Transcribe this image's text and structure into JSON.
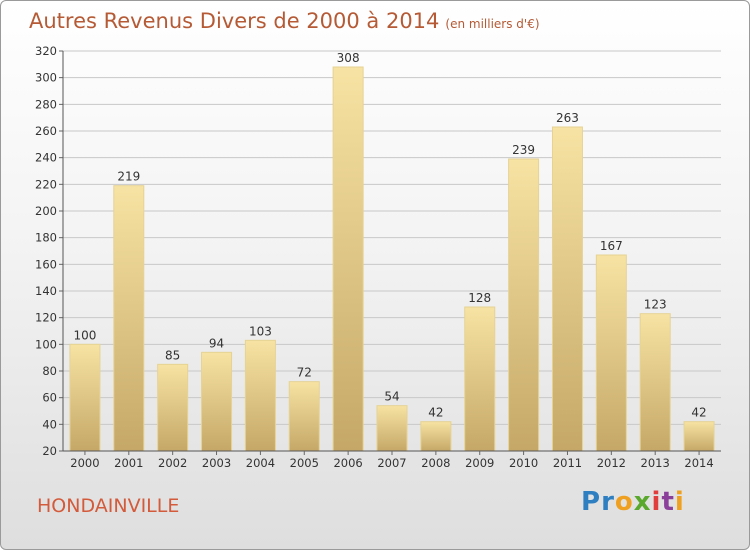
{
  "header": {
    "title": "Autres Revenus Divers de 2000 à 2014",
    "unit": "(en milliers d'€)"
  },
  "footer": {
    "place": "HONDAINVILLE",
    "logo": {
      "letters": [
        {
          "char": "P",
          "color": "#2e7fc1"
        },
        {
          "char": "r",
          "color": "#2e7fc1"
        },
        {
          "char": "o",
          "color": "#f0a020"
        },
        {
          "char": "x",
          "color": "#5aa82c"
        },
        {
          "char": "i",
          "color": "#e23d3d"
        },
        {
          "char": "t",
          "color": "#8b3f9a"
        },
        {
          "char": "i",
          "color": "#f0a020"
        }
      ]
    }
  },
  "colors": {
    "bar_light": "#f7e3a3",
    "bar_dark": "#c5a868",
    "grid": "#c8c8c8",
    "title": "#b55a35",
    "place": "#d35a3a"
  },
  "chart_data": {
    "type": "bar",
    "title": "Autres Revenus Divers de 2000 à 2014",
    "subtitle": "(en milliers d'€)",
    "categories": [
      "2000",
      "2001",
      "2002",
      "2003",
      "2004",
      "2005",
      "2006",
      "2007",
      "2008",
      "2009",
      "2010",
      "2011",
      "2012",
      "2013",
      "2014"
    ],
    "values": [
      100,
      219,
      85,
      94,
      103,
      72,
      308,
      54,
      42,
      128,
      239,
      263,
      167,
      123,
      42
    ],
    "ylim": [
      20,
      320
    ],
    "yticks": [
      20,
      40,
      60,
      80,
      100,
      120,
      140,
      160,
      180,
      200,
      220,
      240,
      260,
      280,
      300,
      320
    ],
    "grid": true
  }
}
